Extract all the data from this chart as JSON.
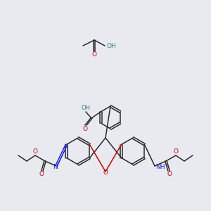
{
  "bg_color": "#e8eaf0",
  "bond_color": "#2a2a2a",
  "oxygen_color": "#cc0000",
  "nitrogen_color": "#1a1aee",
  "hydrogen_color": "#3a8080",
  "figsize": [
    3.0,
    3.0
  ],
  "dpi": 100,
  "xlim": [
    0,
    300
  ],
  "ylim": [
    0,
    300
  ]
}
